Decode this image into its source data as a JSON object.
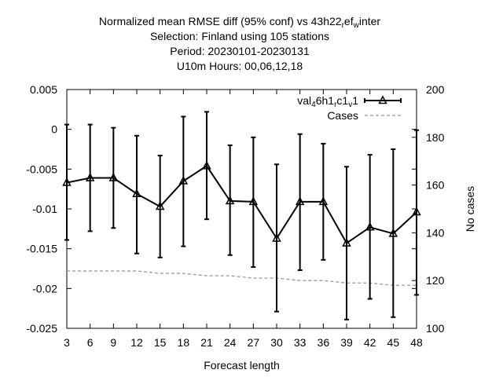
{
  "chart_data": {
    "type": "line",
    "title_lines": [
      {
        "parts": [
          {
            "t": "Normalized mean RMSE diff (95% conf) vs 43h22"
          },
          {
            "t": "r",
            "sub": true
          },
          {
            "t": "ef"
          },
          {
            "t": "w",
            "sub": true
          },
          {
            "t": "inter"
          }
        ]
      },
      {
        "parts": [
          {
            "t": "Selection: Finland using   105 stations"
          }
        ]
      },
      {
        "parts": [
          {
            "t": "Period: 20230101-20230131"
          }
        ]
      },
      {
        "parts": [
          {
            "t": "U10m   Hours:  00,06,12,18"
          }
        ]
      }
    ],
    "xlabel": "Forecast length",
    "ylabel": "",
    "y2label": "No cases",
    "x": [
      3,
      6,
      9,
      12,
      15,
      18,
      21,
      24,
      27,
      30,
      33,
      36,
      39,
      42,
      45,
      48
    ],
    "xticks": [
      "3",
      "6",
      "9",
      "12",
      "15",
      "18",
      "21",
      "24",
      "27",
      "30",
      "33",
      "36",
      "39",
      "42",
      "45",
      "48"
    ],
    "xlim": [
      3,
      48
    ],
    "ylim": [
      -0.025,
      0.005
    ],
    "yticks": [
      "0.005",
      "0",
      "-0.005",
      "-0.01",
      "-0.015",
      "-0.02",
      "-0.025"
    ],
    "ytick_values": [
      0.005,
      0,
      -0.005,
      -0.01,
      -0.015,
      -0.02,
      -0.025
    ],
    "y2lim": [
      100,
      200
    ],
    "y2ticks": [
      "200",
      "180",
      "160",
      "140",
      "120",
      "100"
    ],
    "y2tick_values": [
      200,
      180,
      160,
      140,
      120,
      100
    ],
    "grid": false,
    "legend_position": "top-right",
    "series": [
      {
        "name_parts": [
          {
            "t": "val"
          },
          {
            "t": "4",
            "sub": true
          },
          {
            "t": "6h1"
          },
          {
            "t": "r",
            "sub": true
          },
          {
            "t": "c1"
          },
          {
            "t": "v",
            "sub": true
          },
          {
            "t": "1"
          }
        ],
        "axis": "y",
        "color": "#000000",
        "marker": "triangle",
        "values": [
          -0.0067,
          -0.0061,
          -0.0061,
          -0.0081,
          -0.0097,
          -0.0065,
          -0.0046,
          -0.009,
          -0.0091,
          -0.0137,
          -0.0091,
          -0.0091,
          -0.0143,
          -0.0123,
          -0.0131,
          -0.0104
        ],
        "err_low": [
          -0.0139,
          -0.0128,
          -0.0124,
          -0.0156,
          -0.0161,
          -0.0147,
          -0.0113,
          -0.0158,
          -0.0173,
          -0.0229,
          -0.0177,
          -0.0164,
          -0.0239,
          -0.0213,
          -0.0236,
          -0.0208
        ],
        "err_high": [
          0.0006,
          0.0006,
          0.0002,
          -0.0008,
          -0.0033,
          0.0016,
          0.0022,
          -0.002,
          -0.001,
          -0.0044,
          -0.0006,
          -0.0018,
          -0.0047,
          -0.0032,
          -0.0025,
          -0.0001
        ]
      },
      {
        "name": "Cases",
        "axis": "y2",
        "color": "#999999",
        "dashed": true,
        "values": [
          124,
          124,
          124,
          124,
          123,
          123,
          122,
          122,
          121,
          121,
          120,
          120,
          119,
          119,
          118,
          118
        ]
      }
    ]
  }
}
